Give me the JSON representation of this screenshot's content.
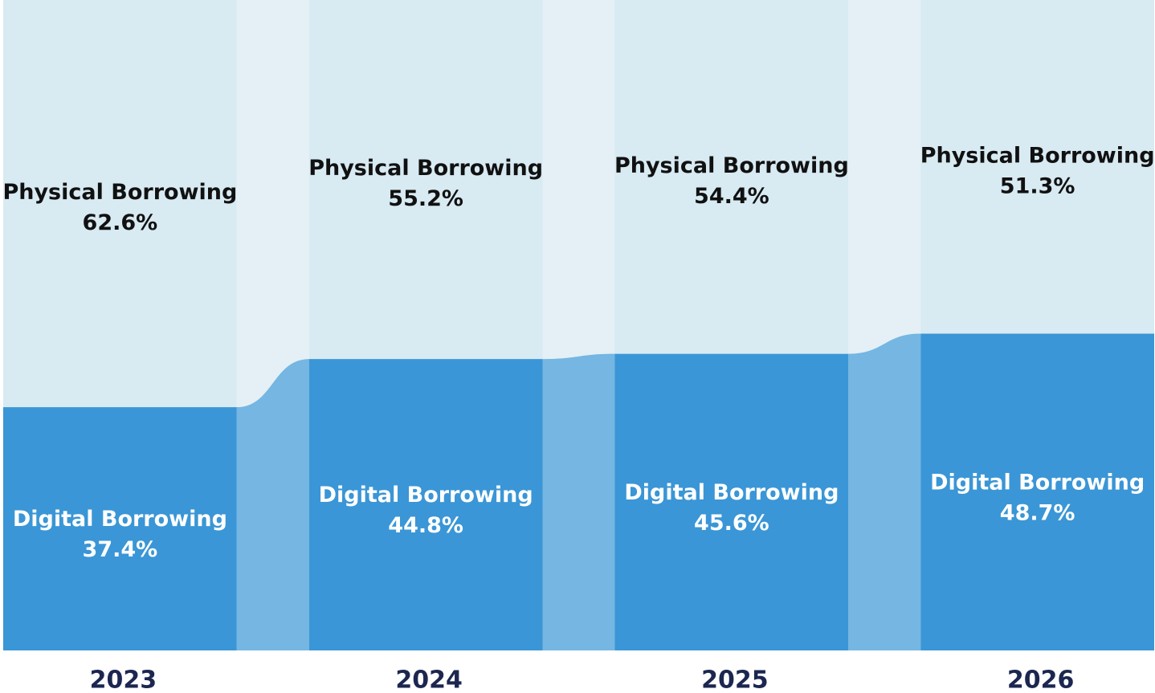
{
  "chart_data": {
    "type": "stacked-bar-flow",
    "categories": [
      "2023",
      "2024",
      "2025",
      "2026"
    ],
    "series": [
      {
        "name": "Digital Borrowing",
        "color": "#3a96d6",
        "values": [
          37.4,
          44.8,
          45.6,
          48.7
        ],
        "value_labels": [
          "37.4%",
          "44.8%",
          "45.6%",
          "48.7%"
        ]
      },
      {
        "name": "Physical Borrowing",
        "color": "#d8eaf2",
        "values": [
          62.6,
          55.2,
          54.4,
          51.3
        ],
        "value_labels": [
          "62.6%",
          "55.2%",
          "54.4%",
          "51.3%"
        ]
      }
    ]
  }
}
